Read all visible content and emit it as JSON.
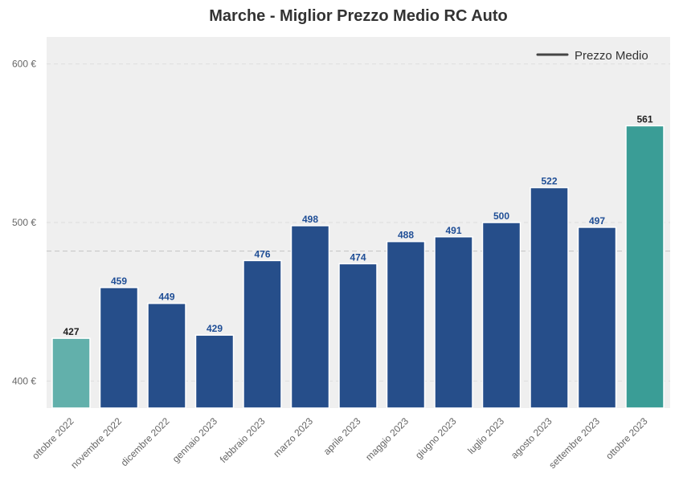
{
  "chart_data": {
    "type": "bar",
    "title": "Marche - Miglior Prezzo Medio RC Auto",
    "xlabel": "",
    "ylabel": "",
    "categories": [
      "ottobre 2022",
      "novembre 2022",
      "dicembre 2022",
      "gennaio 2023",
      "febbraio 2023",
      "marzo 2023",
      "aprile 2023",
      "maggio 2023",
      "giugno 2023",
      "luglio 2023",
      "agosto 2023",
      "settembre 2023",
      "ottobre 2023"
    ],
    "values": [
      427,
      459,
      449,
      429,
      476,
      498,
      474,
      488,
      491,
      500,
      522,
      497,
      561
    ],
    "value_labels": [
      "427",
      "459",
      "449",
      "429",
      "476",
      "498",
      "474",
      "488",
      "491",
      "500",
      "522",
      "497",
      "561"
    ],
    "ylim": [
      383,
      617
    ],
    "yticks": [
      400,
      500,
      600
    ],
    "ytick_labels": [
      "400 €",
      "500 €",
      "600 €"
    ],
    "mean_line": 482,
    "legend": {
      "label": "Prezzo Medio",
      "placement": "top-right"
    },
    "grid": true,
    "colors": {
      "bar": "#264e8a",
      "first_bar": "#62b0ab",
      "last_bar": "#3a9d96",
      "label_default": "#1f4e96",
      "label_highlight": "#222222",
      "plot_bg": "#efefef",
      "mean_line": "#c8c8c8",
      "legend_line": "#444444"
    }
  }
}
